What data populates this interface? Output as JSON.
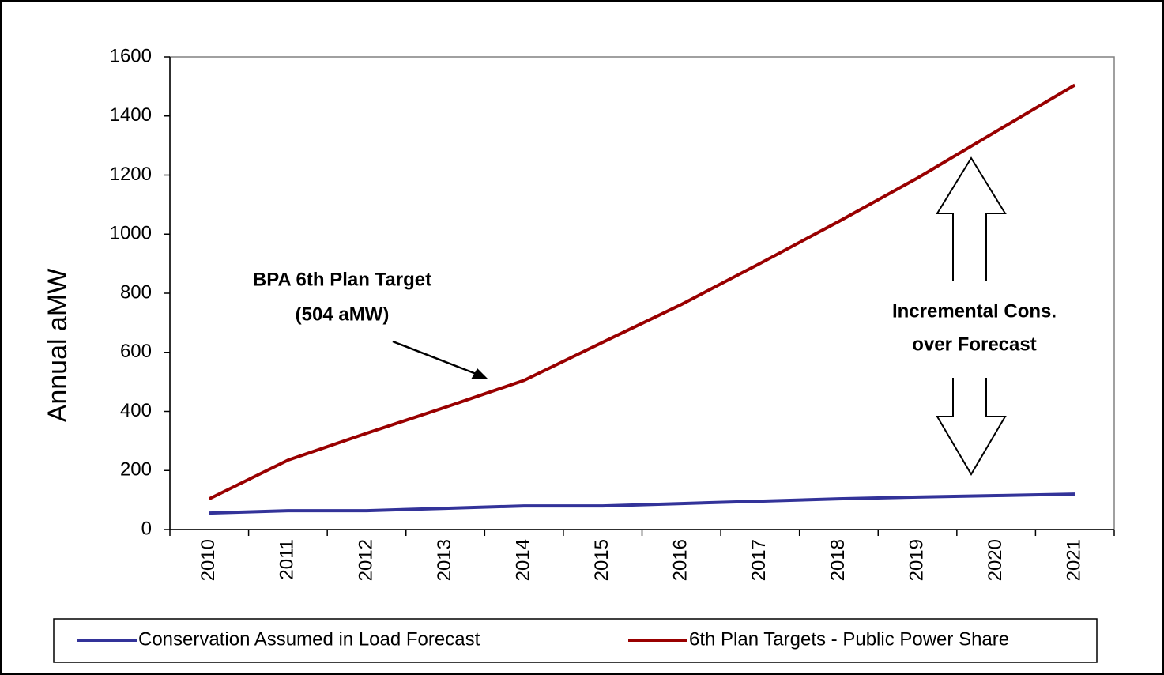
{
  "chart_data": {
    "type": "line",
    "y_label": "Annual aMW",
    "categories": [
      "2010",
      "2011",
      "2012",
      "2013",
      "2014",
      "2015",
      "2016",
      "2017",
      "2018",
      "2019",
      "2020",
      "2021"
    ],
    "series": [
      {
        "name": "Conservation Assumed in Load Forecast",
        "color": "#333399",
        "values": [
          56,
          64,
          64,
          72,
          80,
          80,
          88,
          96,
          104,
          110,
          115,
          120
        ]
      },
      {
        "name": "6th Plan Targets - Public Power Share",
        "color": "#990000",
        "values": [
          104,
          235,
          326,
          414,
          505,
          634,
          762,
          901,
          1043,
          1190,
          1348,
          1505
        ]
      }
    ],
    "ylim": [
      0,
      1600
    ],
    "yticks": [
      0,
      200,
      400,
      600,
      800,
      1000,
      1200,
      1400,
      1600
    ],
    "grid": false,
    "legend": "bottom",
    "annotations": [
      {
        "lines": [
          "BPA 6th Plan Target",
          "(504 aMW)"
        ]
      },
      {
        "lines": [
          "Incremental Cons.",
          "over Forecast"
        ]
      }
    ]
  }
}
